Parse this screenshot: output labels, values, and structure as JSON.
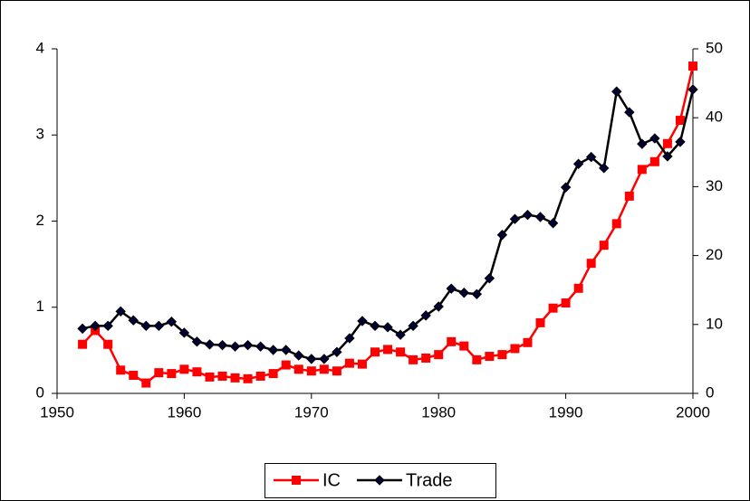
{
  "chart_data": {
    "type": "line",
    "x": [
      1952,
      1953,
      1954,
      1955,
      1956,
      1957,
      1958,
      1959,
      1960,
      1961,
      1962,
      1963,
      1964,
      1965,
      1966,
      1967,
      1968,
      1969,
      1970,
      1971,
      1972,
      1973,
      1974,
      1975,
      1976,
      1977,
      1978,
      1979,
      1980,
      1981,
      1982,
      1983,
      1984,
      1985,
      1986,
      1987,
      1988,
      1989,
      1990,
      1991,
      1992,
      1993,
      1994,
      1995,
      1996,
      1997,
      1998,
      1999,
      2000
    ],
    "series": [
      {
        "name": "IC",
        "color": "#ff0000",
        "marker": "square",
        "values": [
          0.57,
          0.73,
          0.57,
          0.27,
          0.21,
          0.12,
          0.24,
          0.23,
          0.28,
          0.25,
          0.19,
          0.2,
          0.18,
          0.17,
          0.2,
          0.23,
          0.33,
          0.28,
          0.26,
          0.28,
          0.26,
          0.35,
          0.34,
          0.48,
          0.51,
          0.48,
          0.39,
          0.41,
          0.45,
          0.6,
          0.55,
          0.39,
          0.43,
          0.45,
          0.52,
          0.59,
          0.82,
          0.99,
          1.05,
          1.22,
          1.51,
          1.72,
          1.97,
          2.29,
          2.6,
          2.69,
          2.9,
          3.17,
          3.8
        ]
      },
      {
        "name": "Trade",
        "color": "#000033",
        "marker": "diamond",
        "axis": "y2",
        "values": [
          9.4,
          9.8,
          9.8,
          11.9,
          10.6,
          9.8,
          9.8,
          10.4,
          8.8,
          7.5,
          7.1,
          7.0,
          6.8,
          7.0,
          6.8,
          6.3,
          6.3,
          5.5,
          5.0,
          5.0,
          6.0,
          8.0,
          10.5,
          9.8,
          9.6,
          8.5,
          9.8,
          11.3,
          12.6,
          15.2,
          14.6,
          14.4,
          16.7,
          23.0,
          25.3,
          25.9,
          25.6,
          24.7,
          29.9,
          33.3,
          34.3,
          32.7,
          43.8,
          40.8,
          36.2,
          37.0,
          34.4,
          36.5,
          44.1
        ]
      }
    ],
    "xlim": [
      1950,
      2000
    ],
    "xticks": [
      1950,
      1960,
      1970,
      1980,
      1990,
      2000
    ],
    "ylim": [
      0,
      4
    ],
    "yticks": [
      0,
      1,
      2,
      3,
      4
    ],
    "y2lim": [
      0,
      50
    ],
    "y2ticks": [
      0,
      10,
      20,
      30,
      40,
      50
    ],
    "grid": false,
    "legend": "bottom"
  }
}
